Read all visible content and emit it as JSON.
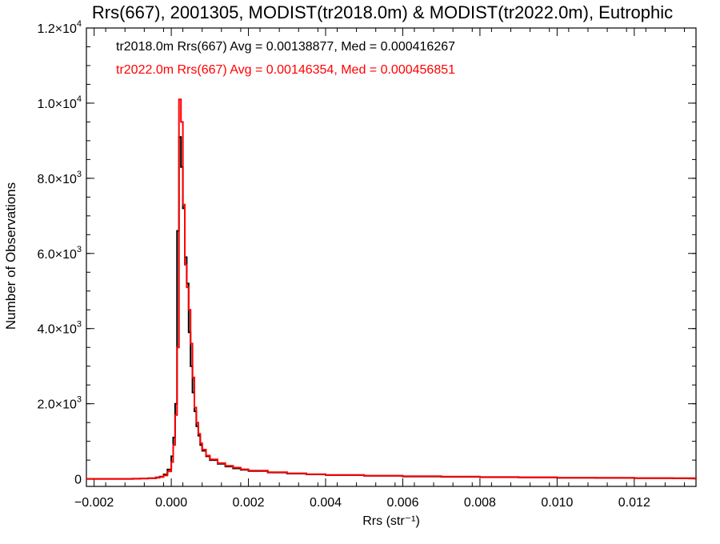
{
  "chart_data": {
    "type": "line",
    "title": "Rrs(667), 2001305, MODIST(tr2018.0m) & MODIST(tr2022.0m), Eutrophic",
    "xlabel": "Rrs (str⁻¹)",
    "ylabel": "Number of Observations",
    "xlim": [
      -0.0022,
      0.0136
    ],
    "ylim": [
      -200,
      12000
    ],
    "x_ticks": [
      -0.002,
      0.0,
      0.002,
      0.004,
      0.006,
      0.008,
      0.01,
      0.012
    ],
    "x_tick_labels": [
      "−0.002",
      "0.000",
      "0.002",
      "0.004",
      "0.006",
      "0.008",
      "0.010",
      "0.012"
    ],
    "y_ticks": [
      0,
      2000,
      4000,
      6000,
      8000,
      10000,
      12000
    ],
    "y_tick_labels": [
      {
        "mantissa": "0",
        "exp": ""
      },
      {
        "mantissa": "2.0×10",
        "exp": "3"
      },
      {
        "mantissa": "4.0×10",
        "exp": "3"
      },
      {
        "mantissa": "6.0×10",
        "exp": "3"
      },
      {
        "mantissa": "8.0×10",
        "exp": "3"
      },
      {
        "mantissa": "1.0×10",
        "exp": "4"
      },
      {
        "mantissa": "1.2×10",
        "exp": "4"
      }
    ],
    "grid": false,
    "legend_position": "top-left",
    "series": [
      {
        "name": "tr2018.0m",
        "color": "#000000",
        "annotation": "tr2018.0m Rrs(667) Avg = 0.00138877, Med = 0.000416267",
        "x": [
          -0.0022,
          -0.001,
          -0.0008,
          -0.0006,
          -0.0004,
          -0.0003,
          -0.0002,
          -0.0001,
          0.0,
          5e-05,
          0.0001,
          0.00015,
          0.0002,
          0.00025,
          0.0003,
          0.00035,
          0.0004,
          0.00045,
          0.0005,
          0.00055,
          0.0006,
          0.00065,
          0.0007,
          0.00075,
          0.0008,
          0.0009,
          0.001,
          0.0012,
          0.0014,
          0.0016,
          0.0018,
          0.002,
          0.0025,
          0.003,
          0.0035,
          0.004,
          0.005,
          0.006,
          0.007,
          0.008,
          0.009,
          0.01,
          0.011,
          0.012,
          0.013,
          0.0136
        ],
        "y": [
          0,
          5,
          10,
          20,
          40,
          60,
          120,
          250,
          600,
          1100,
          2000,
          6600,
          9100,
          8300,
          7200,
          5900,
          5200,
          3900,
          3000,
          2300,
          1800,
          1400,
          1150,
          900,
          750,
          600,
          500,
          400,
          330,
          280,
          240,
          210,
          170,
          140,
          120,
          100,
          80,
          65,
          55,
          45,
          40,
          30,
          25,
          20,
          15,
          10
        ]
      },
      {
        "name": "tr2022.0m",
        "color": "#ff0000",
        "annotation": "tr2022.0m Rrs(667) Avg = 0.00146354, Med = 0.000456851",
        "x": [
          -0.0022,
          -0.001,
          -0.0008,
          -0.0006,
          -0.0004,
          -0.0003,
          -0.0002,
          -0.0001,
          0.0,
          5e-05,
          0.0001,
          0.00015,
          0.0002,
          0.00025,
          0.0003,
          0.00035,
          0.0004,
          0.00045,
          0.0005,
          0.00055,
          0.0006,
          0.00065,
          0.0007,
          0.00075,
          0.0008,
          0.0009,
          0.001,
          0.0012,
          0.0014,
          0.0016,
          0.0018,
          0.002,
          0.0025,
          0.003,
          0.0035,
          0.004,
          0.005,
          0.006,
          0.007,
          0.008,
          0.009,
          0.01,
          0.011,
          0.012,
          0.013,
          0.0136
        ],
        "y": [
          0,
          5,
          10,
          15,
          30,
          50,
          90,
          200,
          450,
          900,
          1700,
          3500,
          10100,
          9500,
          7300,
          5700,
          5100,
          4500,
          3600,
          2700,
          1900,
          1500,
          1200,
          950,
          780,
          620,
          520,
          420,
          350,
          300,
          255,
          220,
          180,
          150,
          125,
          105,
          85,
          70,
          60,
          50,
          42,
          33,
          27,
          22,
          17,
          12
        ]
      }
    ]
  }
}
